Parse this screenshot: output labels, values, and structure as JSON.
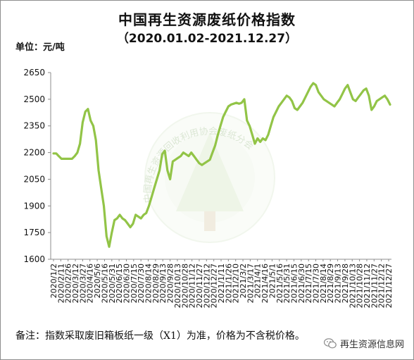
{
  "header": {
    "title": "中国再生资源废纸价格指数",
    "subtitle": "（2020.01.02-2021.12.27）",
    "unit": "单位：元/吨"
  },
  "footer": {
    "note": "备注：指数采取废旧箱板纸一级（X1）为准，价格为不含税价格。",
    "source": "再生资源信息网"
  },
  "watermark": {
    "text": "中国再生资源回收利用协会废纸分会"
  },
  "colors": {
    "line": "#92c447",
    "axis": "#8c8c8c",
    "grid": "#d9d9d9"
  },
  "chart_data": {
    "type": "line",
    "ylim": [
      1600,
      2650
    ],
    "yticks": [
      1600,
      1750,
      1900,
      2050,
      2200,
      2350,
      2500,
      2650
    ],
    "grid": false,
    "x_tick_labels": [
      "2020/1/2",
      "2020/2/11",
      "2020/2/26",
      "2020/3/12",
      "2020/3/27",
      "2020/4/16",
      "2020/5/6",
      "2020/5/16",
      "2020/5/31",
      "2020/6/15",
      "2020/6/30",
      "2020/7/15",
      "2020/7/30",
      "2020/8/14",
      "2020/8/29",
      "2020/9/13",
      "2020/9/28",
      "2020/10/13",
      "2020/10/28",
      "2020/11/12",
      "2020/11/27",
      "2020/12/12",
      "2020/12/27",
      "2021/1/11",
      "2021/1/26",
      "2021/2/10",
      "2021/3/2",
      "2021/3/17",
      "2021/4/1",
      "2021/4/16",
      "2021/5/1",
      "2021/5/16",
      "2021/5/31",
      "2021/6/15",
      "2021/6/30",
      "2021/7/15",
      "2021/7/30",
      "2021/8/14",
      "2021/8/29",
      "2021/9/13",
      "2021/9/28",
      "2021/10/13",
      "2021/10/28",
      "2021/11/12",
      "2021/11/27",
      "2021/12/12",
      "2021/12/27"
    ],
    "series": [
      {
        "values": [
          2195,
          2195,
          2180,
          2165,
          2165,
          2165,
          2165,
          2165,
          2180,
          2200,
          2250,
          2370,
          2430,
          2445,
          2380,
          2350,
          2270,
          2100,
          2000,
          1900,
          1730,
          1670,
          1750,
          1820,
          1830,
          1850,
          1830,
          1820,
          1800,
          1780,
          1800,
          1850,
          1840,
          1830,
          1850,
          1860,
          1900,
          1950,
          2000,
          2050,
          2100,
          2190,
          2210,
          2100,
          2050,
          2150,
          2160,
          2170,
          2180,
          2200,
          2190,
          2180,
          2200,
          2180,
          2160,
          2140,
          2130,
          2140,
          2150,
          2160,
          2200,
          2240,
          2300,
          2350,
          2400,
          2430,
          2460,
          2470,
          2475,
          2480,
          2475,
          2480,
          2500,
          2380,
          2350,
          2300,
          2250,
          2280,
          2260,
          2280,
          2270,
          2300,
          2350,
          2400,
          2430,
          2460,
          2480,
          2500,
          2520,
          2510,
          2490,
          2450,
          2440,
          2460,
          2480,
          2510,
          2540,
          2570,
          2590,
          2580,
          2540,
          2520,
          2500,
          2490,
          2480,
          2470,
          2460,
          2480,
          2500,
          2530,
          2560,
          2580,
          2540,
          2500,
          2490,
          2510,
          2530,
          2550,
          2560,
          2520,
          2440,
          2460,
          2490,
          2500,
          2510,
          2520,
          2500,
          2470
        ]
      }
    ]
  }
}
